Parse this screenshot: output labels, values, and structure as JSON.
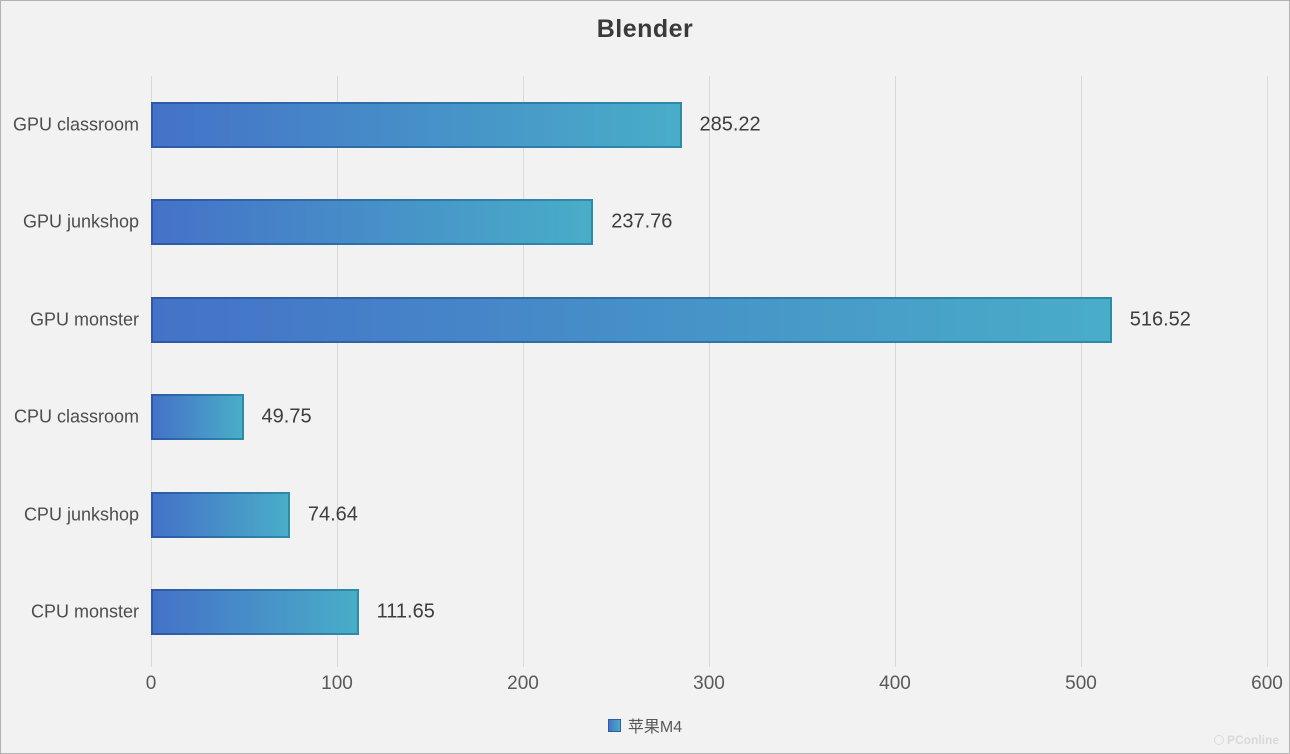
{
  "title": "Blender",
  "chart_data": {
    "type": "bar",
    "orientation": "horizontal",
    "title": "Blender",
    "categories": [
      "GPU classroom",
      "GPU junkshop",
      "GPU monster",
      "CPU classroom",
      "CPU junkshop",
      "CPU monster"
    ],
    "series": [
      {
        "name": "苹果M4",
        "values": [
          285.22,
          237.76,
          516.52,
          49.75,
          74.64,
          111.65
        ]
      }
    ],
    "value_labels": [
      "285.22",
      "237.76",
      "516.52",
      "49.75",
      "74.64",
      "111.65"
    ],
    "xlabel": "",
    "ylabel": "",
    "xlim": [
      0,
      600
    ],
    "xticks": [
      0,
      100,
      200,
      300,
      400,
      500,
      600
    ],
    "grid": "vertical-gridlines",
    "legend_position": "bottom",
    "colors": {
      "bar_gradient_start": "#4472c8",
      "bar_gradient_end": "#49adc8",
      "bar_border_start": "#2f58a6",
      "bar_border_end": "#2e8ba8",
      "background": "#f2f2f2",
      "gridline": "#d9d9d9"
    }
  },
  "legend": {
    "label": "苹果M4"
  },
  "watermark": {
    "text": "PConline"
  }
}
